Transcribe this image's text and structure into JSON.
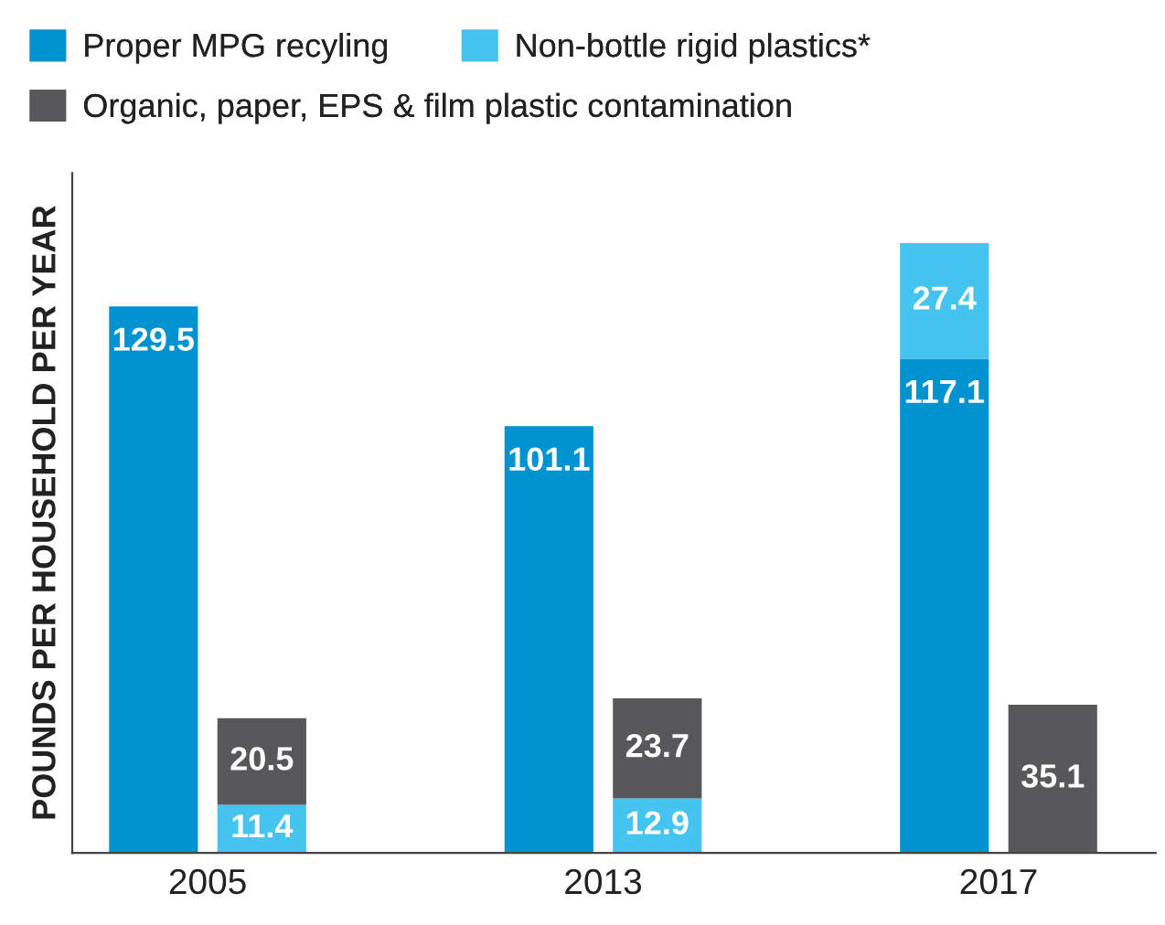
{
  "chart_data": {
    "type": "bar",
    "stacked": true,
    "data_labels": true,
    "legend": "top",
    "grid": false,
    "ylabel": "POUNDS PER HOUSEHOLD PER YEAR",
    "categories": [
      null,
      null,
      null,
      null,
      null,
      null
    ],
    "annotations": [
      "2005",
      "2013",
      "2017"
    ],
    "series": [
      {
        "name": "Proper MPG recyling",
        "color": "#0192d0",
        "values": [
          129.5,
          null,
          101.1,
          null,
          117.1,
          null
        ]
      },
      {
        "name": "Non-bottle rigid plastics*",
        "color": "#45c4ef",
        "values": [
          null,
          11.4,
          null,
          12.9,
          27.4,
          null
        ]
      },
      {
        "name": "Organic, paper, EPS & film plastic contamination",
        "color": "#58585a",
        "values": [
          null,
          20.5,
          null,
          23.7,
          null,
          35.1
        ]
      }
    ]
  }
}
